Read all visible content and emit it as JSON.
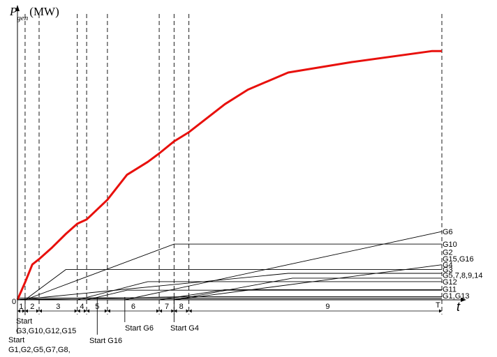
{
  "chart_data": {
    "type": "line",
    "title": "",
    "ylabel": {
      "symbol": "P",
      "subscript": "gen",
      "unit": "(MW)"
    },
    "xlabel": "t",
    "origin_label": "0",
    "end_label": "T",
    "xlim": [
      0,
      100
    ],
    "ylim": [
      0,
      100
    ],
    "grid": false,
    "stage_boundaries": [
      0.0,
      1.8,
      5.1,
      14.1,
      16.3,
      21.2,
      33.4,
      36.9,
      40.4,
      100.0
    ],
    "stages": [
      {
        "label": "1",
        "center": 0.9
      },
      {
        "label": "2",
        "center": 3.5
      },
      {
        "label": "3",
        "center": 9.6
      },
      {
        "label": "4",
        "center": 15.2
      },
      {
        "label": "5",
        "center": 18.8
      },
      {
        "label": "6",
        "center": 27.3
      },
      {
        "label": "7",
        "center": 35.2
      },
      {
        "label": "8",
        "center": 38.6
      },
      {
        "label": "9",
        "center": 73.1
      }
    ],
    "start_annotations": [
      {
        "lines": [
          "Start",
          "G1,G2,G5,G7,G8,"
        ],
        "x": 0.0
      },
      {
        "lines": [
          "Start",
          "G3,G10,G12,G15"
        ],
        "x": 1.8
      },
      {
        "lines": [
          "Start G16"
        ],
        "x": 18.8
      },
      {
        "lines": [
          "Start G6"
        ],
        "x": 25.3
      },
      {
        "lines": [
          "Start G4"
        ],
        "x": 36.9
      }
    ],
    "series": [
      {
        "name": "",
        "emphasis": true,
        "color": "#e8100c",
        "x": [
          0,
          1.8,
          3.5,
          5.1,
          8.2,
          11.4,
          14.1,
          16.3,
          21.2,
          25.8,
          30.7,
          33.4,
          36.9,
          40.4,
          48.9,
          54.3,
          63.8,
          78.8,
          97.6,
          100
        ],
        "y": [
          0,
          6.5,
          13.2,
          15.2,
          19.6,
          24.6,
          28.4,
          30.0,
          37.4,
          46.7,
          51.5,
          54.7,
          59.2,
          62.6,
          73.1,
          78.5,
          84.9,
          88.8,
          92.9,
          92.9
        ]
      },
      {
        "name": "G6",
        "x": [
          25.3,
          100
        ],
        "y": [
          0,
          25.5
        ]
      },
      {
        "name": "G10",
        "x": [
          1.8,
          36.9,
          100
        ],
        "y": [
          0,
          20.8,
          20.8
        ]
      },
      {
        "name": "G3",
        "x": [
          1.8,
          11.4,
          100
        ],
        "y": [
          0,
          11.3,
          11.3
        ]
      },
      {
        "name": "G4",
        "x": [
          36.9,
          100
        ],
        "y": [
          0,
          13.1
        ]
      },
      {
        "name": "G15,G16",
        "x": [
          14.1,
          30.7,
          100
        ],
        "y": [
          0,
          6.8,
          6.8
        ]
      },
      {
        "name": "G2",
        "x": [
          0,
          63.8,
          100
        ],
        "y": [
          0,
          9.9,
          9.9
        ]
      },
      {
        "name": "G5,7,8,9,14",
        "x": [
          36.9,
          64.8,
          100
        ],
        "y": [
          0,
          8.1,
          8.1
        ]
      },
      {
        "name": "G12",
        "x": [
          16.3,
          25.8,
          100
        ],
        "y": [
          0,
          3.6,
          3.6
        ]
      },
      {
        "name": "G11",
        "x": [
          33.4,
          48.9,
          100
        ],
        "y": [
          0,
          3.8,
          3.8
        ]
      },
      {
        "name": "G1,G13",
        "x": [
          0,
          40.4,
          100
        ],
        "y": [
          0,
          1.2,
          1.2
        ]
      }
    ],
    "baseline_offsets": [
      0.4,
      0.8
    ],
    "end_labels": [
      {
        "text": "G6",
        "y": 25.5
      },
      {
        "text": "G10",
        "y": 20.8
      },
      {
        "text": "G2",
        "y": 17.8
      },
      {
        "text": "G15,G16",
        "y": 15.3
      },
      {
        "text": "G4",
        "y": 13.1
      },
      {
        "text": "G3",
        "y": 11.3
      },
      {
        "text": "G5,7,8,9,14",
        "y": 9.2
      },
      {
        "text": "G12",
        "y": 6.8
      },
      {
        "text": "G11",
        "y": 4.0
      },
      {
        "text": "G1,G13",
        "y": 1.6
      }
    ]
  }
}
